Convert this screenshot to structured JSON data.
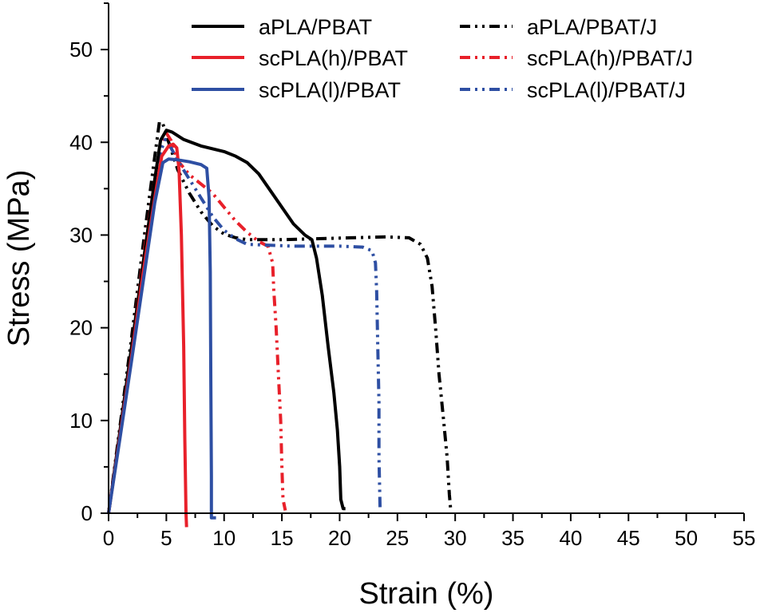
{
  "chart_data": {
    "type": "line",
    "title": "",
    "xlabel": "Strain (%)",
    "ylabel": "Stress (MPa)",
    "xlim": [
      0,
      55
    ],
    "ylim": [
      0,
      55
    ],
    "x_ticks": [
      0,
      5,
      10,
      15,
      20,
      25,
      30,
      35,
      40,
      45,
      50,
      55
    ],
    "y_ticks": [
      0,
      10,
      20,
      30,
      40,
      50
    ],
    "grid": false,
    "legend_position": "top",
    "series": [
      {
        "name": "aPLA/PBAT",
        "color": "#000000",
        "style": "solid",
        "points": [
          [
            0,
            0
          ],
          [
            1,
            9
          ],
          [
            2,
            18
          ],
          [
            3,
            27
          ],
          [
            4,
            36
          ],
          [
            4.5,
            40.2
          ],
          [
            5,
            41.3
          ],
          [
            5.5,
            41.1
          ],
          [
            6.5,
            40.3
          ],
          [
            8,
            39.6
          ],
          [
            10,
            39
          ],
          [
            11,
            38.5
          ],
          [
            12,
            37.8
          ],
          [
            13,
            36.6
          ],
          [
            14,
            34.8
          ],
          [
            15,
            33
          ],
          [
            16,
            31.2
          ],
          [
            17,
            30
          ],
          [
            17.6,
            29.5
          ],
          [
            18,
            27.5
          ],
          [
            18.5,
            23.5
          ],
          [
            19,
            18
          ],
          [
            19.5,
            13
          ],
          [
            19.8,
            9
          ],
          [
            20,
            5
          ],
          [
            20.1,
            1.5
          ],
          [
            20.3,
            0.5
          ],
          [
            20.5,
            0.5
          ]
        ]
      },
      {
        "name": "scPLA(h)/PBAT",
        "color": "#e8202a",
        "style": "solid",
        "points": [
          [
            0,
            0
          ],
          [
            1,
            8.5
          ],
          [
            2,
            17
          ],
          [
            3,
            26
          ],
          [
            4,
            34
          ],
          [
            4.6,
            38.5
          ],
          [
            5.2,
            39.6
          ],
          [
            5.6,
            39.8
          ],
          [
            5.9,
            39.4
          ],
          [
            6.1,
            37
          ],
          [
            6.3,
            30
          ],
          [
            6.5,
            18
          ],
          [
            6.6,
            8
          ],
          [
            6.7,
            0
          ],
          [
            6.75,
            -1.5
          ]
        ]
      },
      {
        "name": "scPLA(l)/PBAT",
        "color": "#2e4fa3",
        "style": "solid",
        "points": [
          [
            0,
            0
          ],
          [
            1,
            8.2
          ],
          [
            2,
            16.5
          ],
          [
            3,
            25
          ],
          [
            4,
            33.5
          ],
          [
            4.7,
            37.8
          ],
          [
            5.2,
            38.2
          ],
          [
            6,
            38.1
          ],
          [
            7,
            37.9
          ],
          [
            8,
            37.6
          ],
          [
            8.5,
            37.2
          ],
          [
            8.7,
            34
          ],
          [
            8.8,
            26
          ],
          [
            8.85,
            14
          ],
          [
            8.9,
            4
          ],
          [
            8.9,
            -0.5
          ],
          [
            9.3,
            -0.5
          ]
        ]
      },
      {
        "name": "aPLA/PBAT/J",
        "color": "#000000",
        "style": "dashdotdot",
        "points": [
          [
            0,
            0
          ],
          [
            1,
            9.5
          ],
          [
            2,
            19
          ],
          [
            3,
            29
          ],
          [
            4,
            38.5
          ],
          [
            4.4,
            42.2
          ],
          [
            4.7,
            42
          ],
          [
            5.2,
            40
          ],
          [
            6,
            37
          ],
          [
            7,
            34.5
          ],
          [
            8,
            32.5
          ],
          [
            9,
            31
          ],
          [
            10,
            30.1
          ],
          [
            11,
            29.7
          ],
          [
            12,
            29.5
          ],
          [
            15,
            29.5
          ],
          [
            18,
            29.6
          ],
          [
            21,
            29.7
          ],
          [
            24,
            29.8
          ],
          [
            26,
            29.7
          ],
          [
            27,
            29
          ],
          [
            27.6,
            27.5
          ],
          [
            28,
            24.5
          ],
          [
            28.3,
            20
          ],
          [
            28.6,
            15
          ],
          [
            29,
            10
          ],
          [
            29.3,
            6
          ],
          [
            29.5,
            2
          ],
          [
            29.6,
            0.5
          ],
          [
            29.9,
            0.5
          ]
        ]
      },
      {
        "name": "scPLA(h)/PBAT/J",
        "color": "#e8202a",
        "style": "dashdotdot",
        "points": [
          [
            0,
            0
          ],
          [
            1,
            9
          ],
          [
            2,
            18
          ],
          [
            3,
            27.5
          ],
          [
            4,
            36
          ],
          [
            4.6,
            40
          ],
          [
            5,
            41
          ],
          [
            5.4,
            40.2
          ],
          [
            6,
            38
          ],
          [
            7,
            36.5
          ],
          [
            8,
            35.5
          ],
          [
            9,
            34.5
          ],
          [
            10,
            33
          ],
          [
            11,
            31.5
          ],
          [
            12,
            30.3
          ],
          [
            13,
            29.3
          ],
          [
            13.8,
            28.8
          ],
          [
            14.2,
            27
          ],
          [
            14.3,
            24
          ],
          [
            14.5,
            20
          ],
          [
            14.7,
            15
          ],
          [
            14.9,
            10
          ],
          [
            15,
            5
          ],
          [
            15.1,
            1.5
          ],
          [
            15.3,
            0.3
          ]
        ]
      },
      {
        "name": "scPLA(l)/PBAT/J",
        "color": "#2e4fa3",
        "style": "dashdotdot",
        "points": [
          [
            0,
            0
          ],
          [
            1,
            8.8
          ],
          [
            2,
            17.5
          ],
          [
            3,
            27
          ],
          [
            4,
            35.5
          ],
          [
            4.5,
            39
          ],
          [
            4.9,
            40.3
          ],
          [
            5.4,
            39.4
          ],
          [
            6,
            38
          ],
          [
            7,
            36
          ],
          [
            8,
            34
          ],
          [
            9,
            32
          ],
          [
            10,
            30.5
          ],
          [
            11,
            29.6
          ],
          [
            12,
            29
          ],
          [
            14,
            28.9
          ],
          [
            16,
            28.8
          ],
          [
            18,
            28.8
          ],
          [
            20,
            28.8
          ],
          [
            22,
            28.7
          ],
          [
            22.8,
            28.3
          ],
          [
            23.1,
            27
          ],
          [
            23.2,
            24
          ],
          [
            23.3,
            18
          ],
          [
            23.4,
            12
          ],
          [
            23.4,
            6
          ],
          [
            23.5,
            0.5
          ]
        ]
      }
    ]
  }
}
